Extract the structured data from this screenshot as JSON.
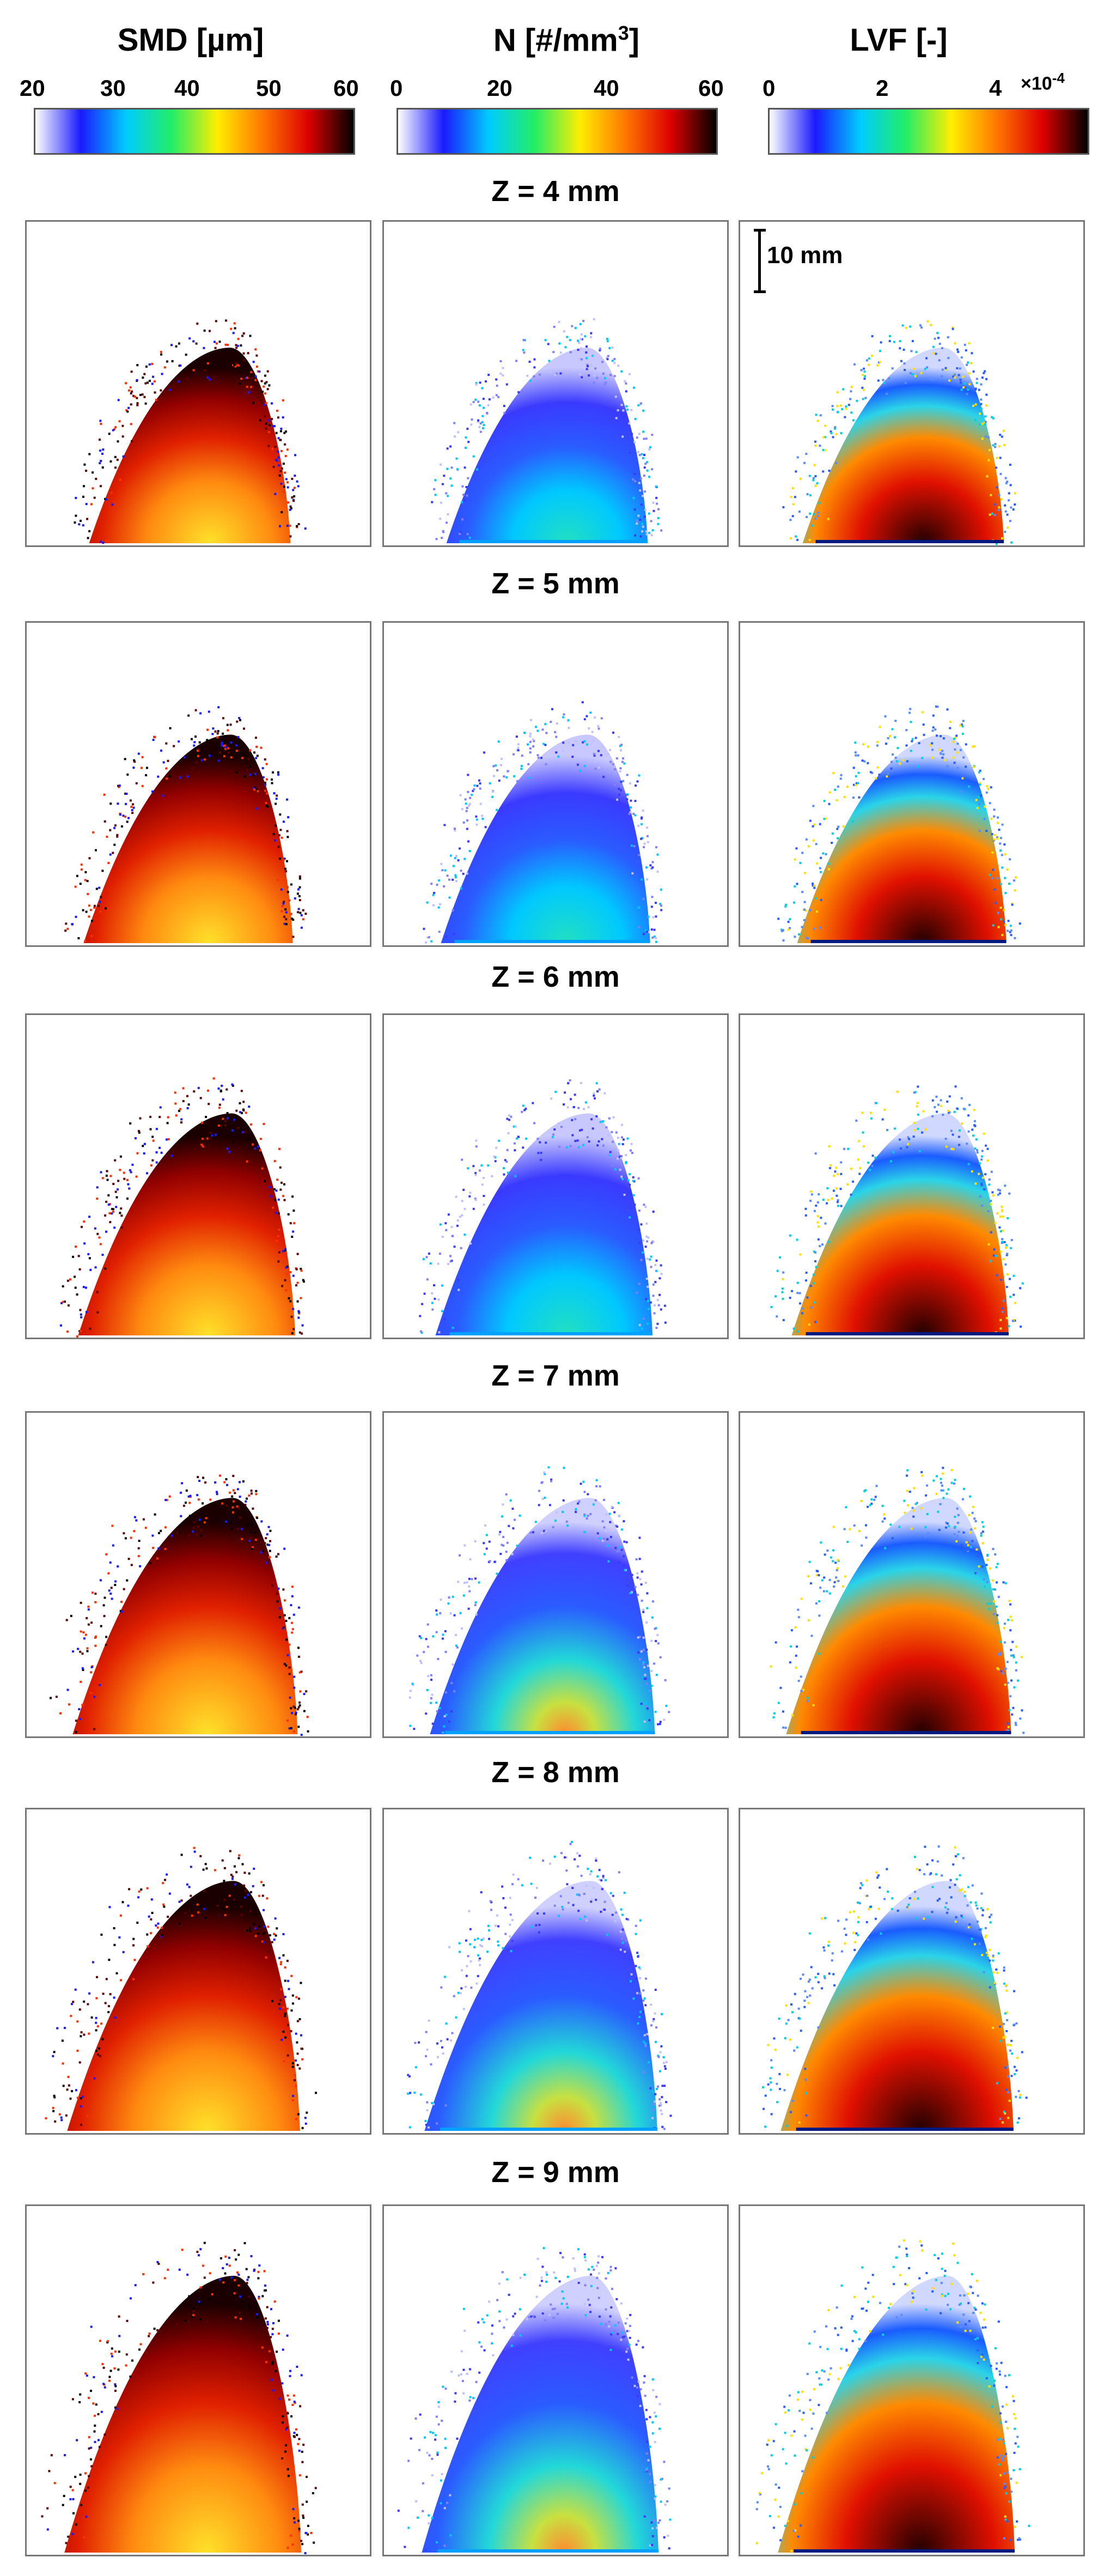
{
  "columns": [
    {
      "id": "smd",
      "title": "SMD [µm]",
      "ticks": [
        "20",
        "30",
        "40",
        "50",
        "60"
      ],
      "multiplier": "",
      "colormap": [
        "#ffffff",
        "#1a1aff",
        "#00ccff",
        "#22ee66",
        "#ffee00",
        "#ff7700",
        "#dd0000",
        "#000000"
      ]
    },
    {
      "id": "n",
      "title_main": "N [#/mm",
      "title_sup": "3",
      "title_end": "]",
      "ticks": [
        "0",
        "20",
        "40",
        "60"
      ],
      "multiplier": "",
      "colormap": [
        "#ffffff",
        "#1a1aff",
        "#00ccff",
        "#22ee66",
        "#ffee00",
        "#ff7700",
        "#dd0000",
        "#000000"
      ]
    },
    {
      "id": "lvf",
      "title": "LVF [-]",
      "ticks": [
        "0",
        "2",
        "4"
      ],
      "multiplier_base": "×10",
      "multiplier_exp": "-4",
      "colormap": [
        "#ffffff",
        "#1a1aff",
        "#00ccff",
        "#22ee66",
        "#ffee00",
        "#ff7700",
        "#dd0000",
        "#000000"
      ]
    }
  ],
  "rows": [
    {
      "label": "Z = 4 mm",
      "spread": 0.55
    },
    {
      "label": "Z = 5 mm",
      "spread": 0.65
    },
    {
      "label": "Z = 6 mm",
      "spread": 0.75
    },
    {
      "label": "Z = 7 mm",
      "spread": 0.85
    },
    {
      "label": "Z = 8 mm",
      "spread": 0.95
    },
    {
      "label": "Z = 9 mm",
      "spread": 1.0
    }
  ],
  "scale_bar": {
    "label": "10 mm"
  }
}
